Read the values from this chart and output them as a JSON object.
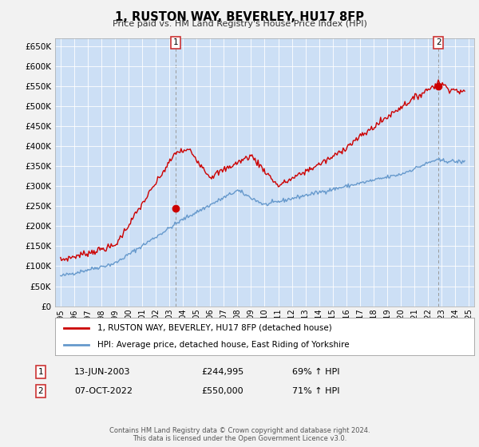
{
  "title": "1, RUSTON WAY, BEVERLEY, HU17 8FP",
  "subtitle": "Price paid vs. HM Land Registry's House Price Index (HPI)",
  "legend_line1": "1, RUSTON WAY, BEVERLEY, HU17 8FP (detached house)",
  "legend_line2": "HPI: Average price, detached house, East Riding of Yorkshire",
  "footer": "Contains HM Land Registry data © Crown copyright and database right 2024.\nThis data is licensed under the Open Government Licence v3.0.",
  "annotation1_date": "13-JUN-2003",
  "annotation1_price": "£244,995",
  "annotation1_hpi": "69% ↑ HPI",
  "annotation2_date": "07-OCT-2022",
  "annotation2_price": "£550,000",
  "annotation2_hpi": "71% ↑ HPI",
  "red_color": "#cc0000",
  "blue_color": "#6699cc",
  "fig_bg": "#f2f2f2",
  "plot_bg": "#ccdff5",
  "grid_color": "#ffffff",
  "ylim_max": 670000,
  "yticks": [
    0,
    50000,
    100000,
    150000,
    200000,
    250000,
    300000,
    350000,
    400000,
    450000,
    500000,
    550000,
    600000,
    650000
  ],
  "sale1_year": 2003.45,
  "sale1_price": 244995,
  "sale2_year": 2022.77,
  "sale2_price": 550000,
  "xmin": 1994.6,
  "xmax": 2025.4
}
